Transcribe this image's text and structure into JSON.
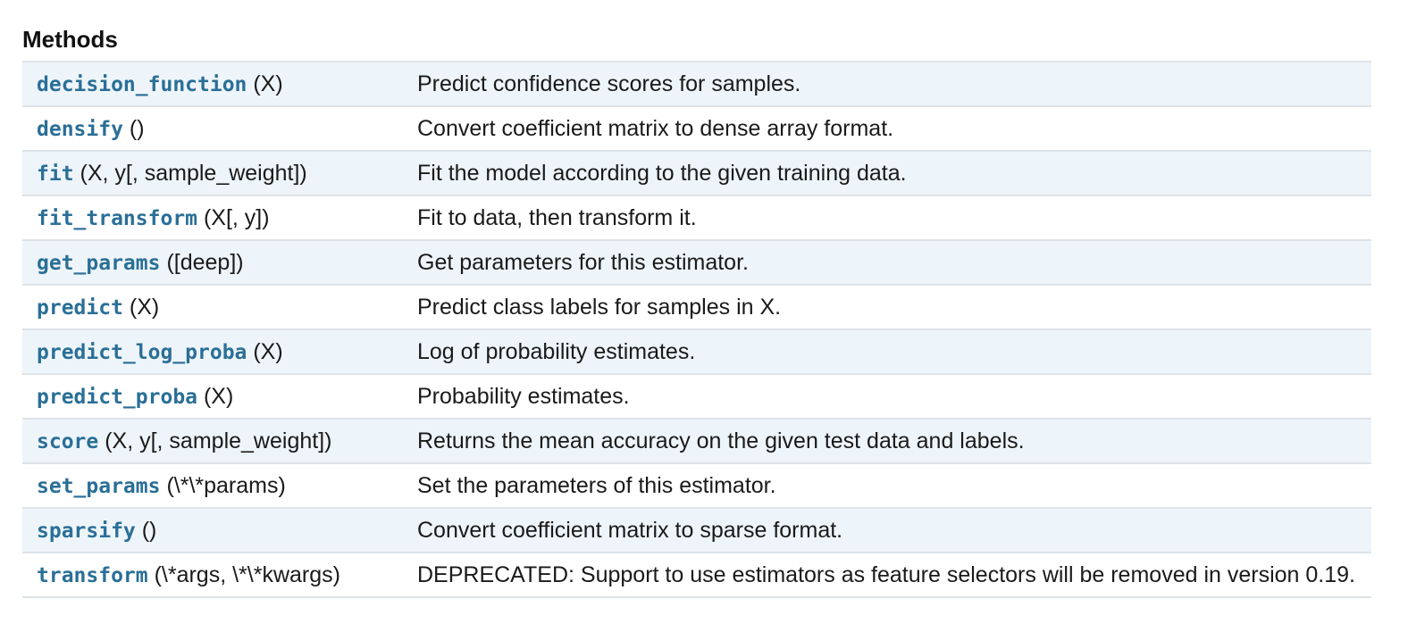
{
  "section": {
    "title": "Methods"
  },
  "methods": [
    {
      "name": "decision_function",
      "args": "(X)",
      "description": "Predict confidence scores for samples."
    },
    {
      "name": "densify",
      "args": "()",
      "description": "Convert coefficient matrix to dense array format."
    },
    {
      "name": "fit",
      "args": "(X, y[, sample_weight])",
      "description": "Fit the model according to the given training data."
    },
    {
      "name": "fit_transform",
      "args": "(X[, y])",
      "description": "Fit to data, then transform it."
    },
    {
      "name": "get_params",
      "args": "([deep])",
      "description": "Get parameters for this estimator."
    },
    {
      "name": "predict",
      "args": "(X)",
      "description": "Predict class labels for samples in X."
    },
    {
      "name": "predict_log_proba",
      "args": "(X)",
      "description": "Log of probability estimates."
    },
    {
      "name": "predict_proba",
      "args": "(X)",
      "description": "Probability estimates."
    },
    {
      "name": "score",
      "args": "(X, y[, sample_weight])",
      "description": "Returns the mean accuracy on the given test data and labels."
    },
    {
      "name": "set_params",
      "args": "(\\*\\*params)",
      "description": "Set the parameters of this estimator."
    },
    {
      "name": "sparsify",
      "args": "()",
      "description": "Convert coefficient matrix to sparse format."
    },
    {
      "name": "transform",
      "args": "(\\*args, \\*\\*kwargs)",
      "description": "DEPRECATED: Support to use estimators as feature selectors will be removed in version 0.19."
    }
  ],
  "colors": {
    "link": "#2a6f97",
    "row_alt": "#eef5fa",
    "border": "#dde3e8"
  }
}
